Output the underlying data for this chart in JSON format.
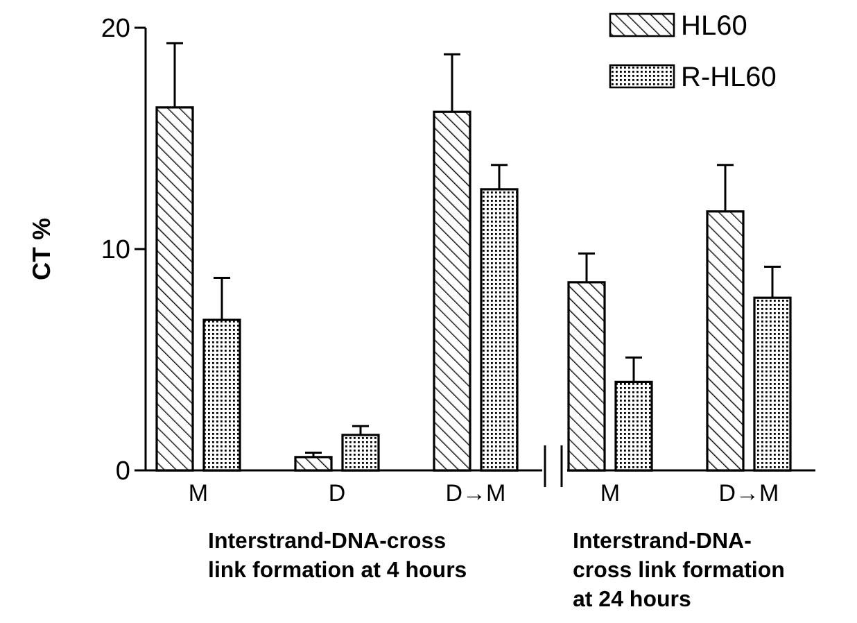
{
  "chart_data": {
    "type": "bar",
    "ylabel": "CT %",
    "categories": [
      "M",
      "D",
      "D→M",
      "M",
      "D→M"
    ],
    "series": [
      {
        "name": "HL60",
        "color": "#000000",
        "values": [
          16.4,
          0.6,
          16.2,
          8.5,
          11.7
        ],
        "errors": [
          [
            16.4,
            19.3
          ],
          [
            0.6,
            0.8
          ],
          [
            16.2,
            18.8
          ],
          [
            8.5,
            9.8
          ],
          [
            11.7,
            13.8
          ]
        ]
      },
      {
        "name": "R-HL60",
        "color": "#000000",
        "values": [
          6.8,
          1.6,
          12.7,
          4.0,
          7.8
        ],
        "errors": [
          [
            6.8,
            8.7
          ],
          [
            1.6,
            2.0
          ],
          [
            12.7,
            13.8
          ],
          [
            4.0,
            5.1
          ],
          [
            7.8,
            9.2
          ]
        ]
      }
    ],
    "ylim": [
      0,
      20
    ],
    "yticks": [
      0,
      10,
      20
    ],
    "grid": false,
    "legend": "top right",
    "annotations": [
      "Interstrand-DNA-cross\nlink formation at 4 hours",
      "Interstrand-DNA-\ncross link formation\nat 24 hours"
    ]
  }
}
